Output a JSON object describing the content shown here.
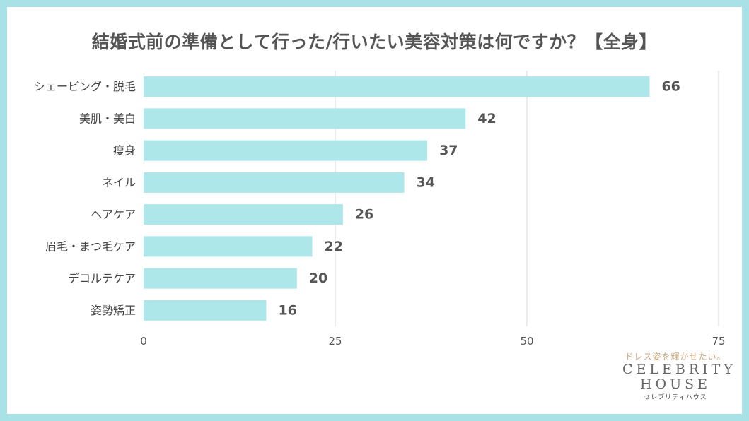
{
  "chart_data": {
    "type": "bar",
    "orientation": "horizontal",
    "title": "結婚式前の準備として行った/行いたい美容対策は何ですか？【全身】",
    "categories": [
      "シェービング・脱毛",
      "美肌・美白",
      "瘦身",
      "ネイル",
      "ヘアケア",
      "眉毛・まつ毛ケア",
      "デコルテケア",
      "姿勢矯正"
    ],
    "values": [
      66,
      42,
      37,
      34,
      26,
      22,
      20,
      16
    ],
    "xlim": [
      0,
      75
    ],
    "xticks": [
      0,
      25,
      50,
      75
    ],
    "grid": true,
    "bar_color": "#ade7e9",
    "grid_color": "#d9d9d9"
  },
  "logo": {
    "tagline": "ドレス姿を輝かせたい。",
    "line1": "CELEBRITY",
    "line2": "HOUSE",
    "kana": "セレブリティハウス"
  },
  "colors": {
    "frame": "#a8e2e6",
    "text": "#555555"
  }
}
